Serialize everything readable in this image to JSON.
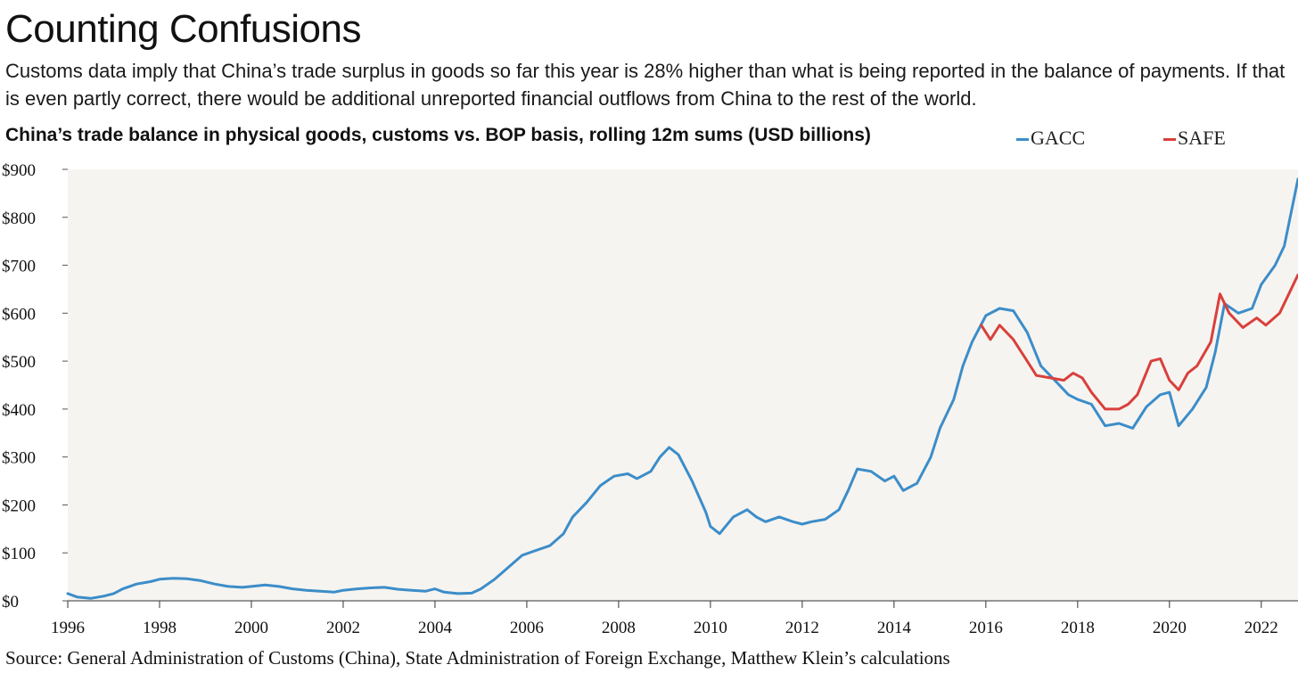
{
  "header": {
    "title": "Counting Confusions",
    "subtitle": "Customs data imply that China’s trade surplus in goods so far this year is 28% higher than what is being reported in the balance of payments. If that is even partly correct, there would be additional unreported financial outflows from China to the rest of the world."
  },
  "footer": {
    "source": "Source: General Administration of Customs (China), State Administration of Foreign Exchange, Matthew Klein’s calculations"
  },
  "chart_data": {
    "type": "line",
    "title": "China’s trade balance in physical goods, customs vs. BOP basis, rolling 12m sums (USD billions)",
    "xlabel": "",
    "ylabel": "",
    "xlim": [
      1996,
      2022.8
    ],
    "ylim": [
      0,
      900
    ],
    "grid": false,
    "legend_position": "top-right",
    "plot_background": "#f6f4f0",
    "x_ticks": [
      1996,
      1998,
      2000,
      2002,
      2004,
      2006,
      2008,
      2010,
      2012,
      2014,
      2016,
      2018,
      2020,
      2022
    ],
    "x_tick_labels": [
      "1996",
      "1998",
      "2000",
      "2002",
      "2004",
      "2006",
      "2008",
      "2010",
      "2012",
      "2014",
      "2016",
      "2018",
      "2020",
      "2022"
    ],
    "y_ticks": [
      0,
      100,
      200,
      300,
      400,
      500,
      600,
      700,
      800,
      900
    ],
    "y_tick_labels": [
      "$0",
      "$100",
      "$200",
      "$300",
      "$400",
      "$500",
      "$600",
      "$700",
      "$800",
      "$900"
    ],
    "series": [
      {
        "name": "GACC",
        "color": "#3c8dc9",
        "x": [
          1996.0,
          1996.2,
          1996.5,
          1996.8,
          1997.0,
          1997.2,
          1997.5,
          1997.8,
          1998.0,
          1998.3,
          1998.6,
          1998.9,
          1999.2,
          1999.5,
          1999.8,
          2000.0,
          2000.3,
          2000.6,
          2000.9,
          2001.2,
          2001.5,
          2001.8,
          2002.0,
          2002.3,
          2002.6,
          2002.9,
          2003.2,
          2003.5,
          2003.8,
          2004.0,
          2004.2,
          2004.5,
          2004.8,
          2005.0,
          2005.3,
          2005.6,
          2005.9,
          2006.2,
          2006.5,
          2006.8,
          2007.0,
          2007.3,
          2007.6,
          2007.9,
          2008.2,
          2008.4,
          2008.7,
          2008.9,
          2009.1,
          2009.3,
          2009.6,
          2009.9,
          2010.0,
          2010.2,
          2010.5,
          2010.8,
          2011.0,
          2011.2,
          2011.5,
          2011.8,
          2012.0,
          2012.2,
          2012.5,
          2012.8,
          2013.0,
          2013.2,
          2013.5,
          2013.8,
          2014.0,
          2014.2,
          2014.5,
          2014.8,
          2015.0,
          2015.3,
          2015.5,
          2015.7,
          2016.0,
          2016.3,
          2016.6,
          2016.9,
          2017.2,
          2017.5,
          2017.8,
          2018.0,
          2018.3,
          2018.6,
          2018.9,
          2019.2,
          2019.5,
          2019.8,
          2020.0,
          2020.2,
          2020.5,
          2020.8,
          2021.0,
          2021.2,
          2021.5,
          2021.8,
          2022.0,
          2022.3,
          2022.5,
          2022.8
        ],
        "values": [
          15,
          8,
          5,
          10,
          15,
          25,
          35,
          40,
          45,
          47,
          46,
          42,
          35,
          30,
          28,
          30,
          33,
          30,
          25,
          22,
          20,
          18,
          22,
          25,
          27,
          28,
          24,
          22,
          20,
          25,
          18,
          15,
          16,
          25,
          45,
          70,
          95,
          105,
          115,
          140,
          175,
          205,
          240,
          260,
          265,
          255,
          270,
          300,
          320,
          305,
          250,
          185,
          155,
          140,
          175,
          190,
          175,
          165,
          175,
          165,
          160,
          165,
          170,
          190,
          230,
          275,
          270,
          250,
          260,
          230,
          245,
          300,
          360,
          420,
          490,
          540,
          595,
          610,
          605,
          560,
          490,
          460,
          430,
          420,
          410,
          365,
          370,
          360,
          405,
          430,
          435,
          365,
          400,
          445,
          520,
          620,
          600,
          610,
          660,
          700,
          740,
          880
        ]
      },
      {
        "name": "SAFE",
        "color": "#d9403c",
        "x": [
          2015.9,
          2016.1,
          2016.3,
          2016.6,
          2016.9,
          2017.1,
          2017.4,
          2017.7,
          2017.9,
          2018.1,
          2018.3,
          2018.6,
          2018.9,
          2019.1,
          2019.3,
          2019.6,
          2019.8,
          2020.0,
          2020.2,
          2020.4,
          2020.6,
          2020.9,
          2021.1,
          2021.3,
          2021.6,
          2021.9,
          2022.1,
          2022.4,
          2022.6,
          2022.8
        ],
        "values": [
          575,
          545,
          575,
          545,
          500,
          470,
          465,
          460,
          475,
          465,
          435,
          400,
          400,
          410,
          430,
          500,
          505,
          460,
          440,
          475,
          490,
          540,
          640,
          600,
          570,
          590,
          575,
          600,
          640,
          680
        ]
      }
    ]
  }
}
